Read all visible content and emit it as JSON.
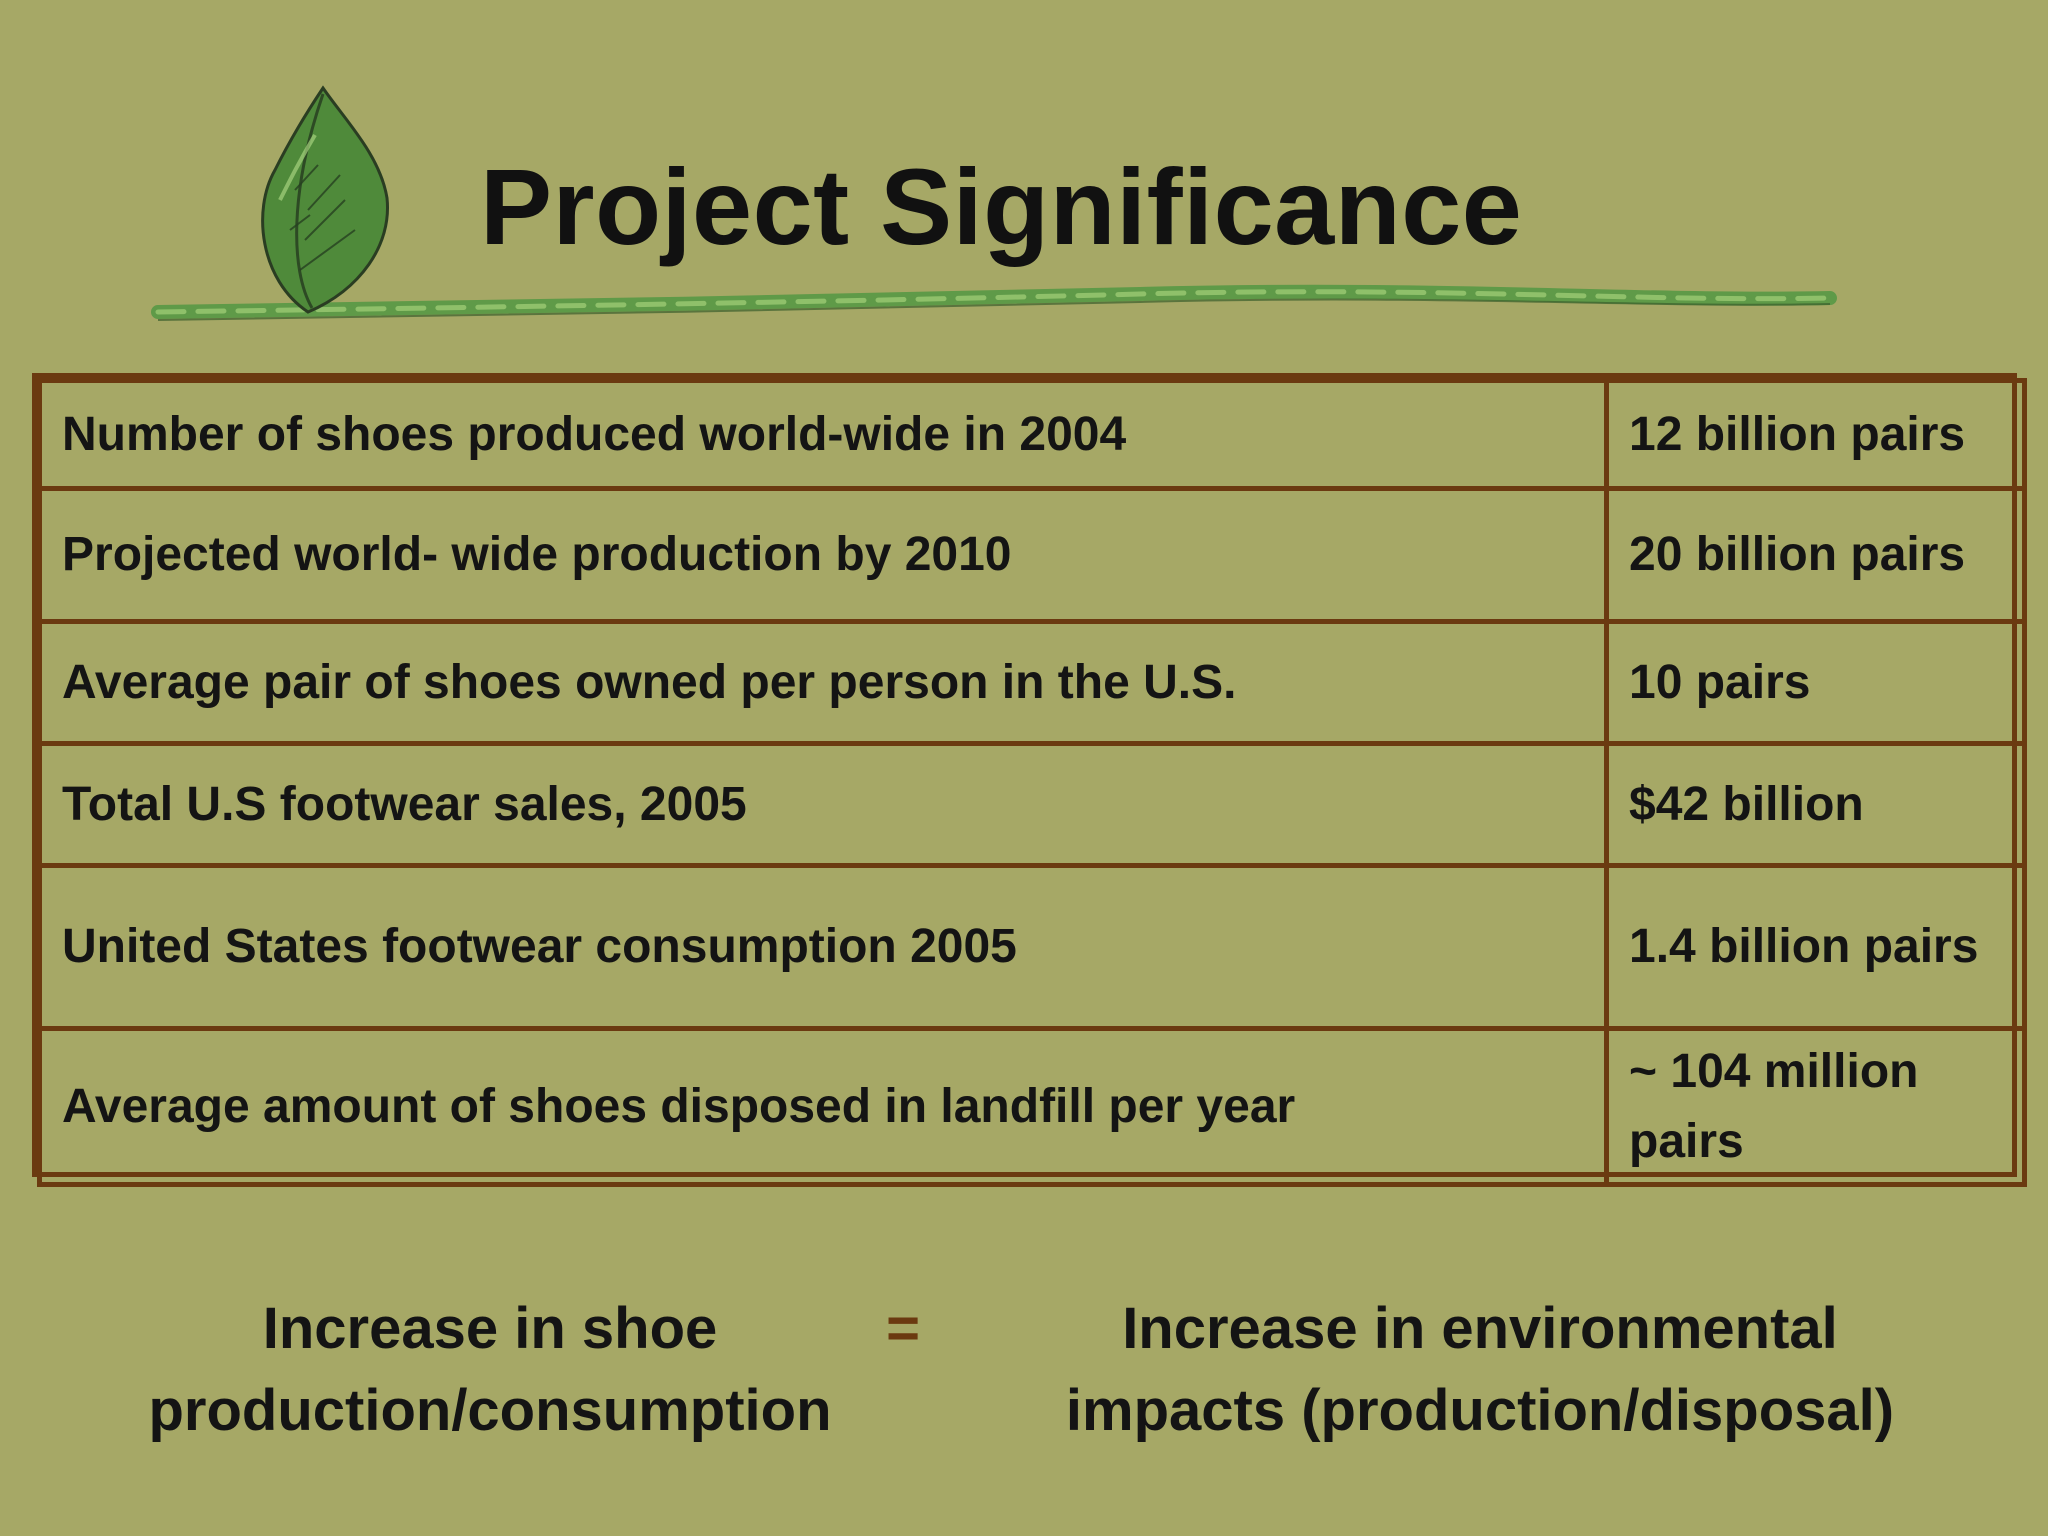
{
  "slide": {
    "title": "Project Significance",
    "decoration_icon": "leaf-on-stem-icon",
    "accent_color": "#6b3a10",
    "background_color": "#a6a866"
  },
  "table": {
    "rows": [
      {
        "label": "Number of shoes produced world-wide in 2004",
        "value": "12 billion pairs"
      },
      {
        "label": "Projected world- wide production by 2010",
        "value": "20 billion pairs"
      },
      {
        "label": "Average pair of shoes owned per person in the U.S.",
        "value": "10 pairs"
      },
      {
        "label": "Total U.S footwear sales, 2005",
        "value": "$42 billion"
      },
      {
        "label": "United States footwear consumption 2005",
        "value": "1.4 billion pairs"
      },
      {
        "label": "Average amount of shoes disposed in landfill per year",
        "value": "~ 104 million",
        "value_line2": "pairs"
      }
    ]
  },
  "conclusion": {
    "left_line1": "Increase in shoe",
    "left_line2": "production/consumption",
    "operator": "=",
    "right_line1": "Increase in environmental",
    "right_line2": "impacts (production/disposal)"
  }
}
